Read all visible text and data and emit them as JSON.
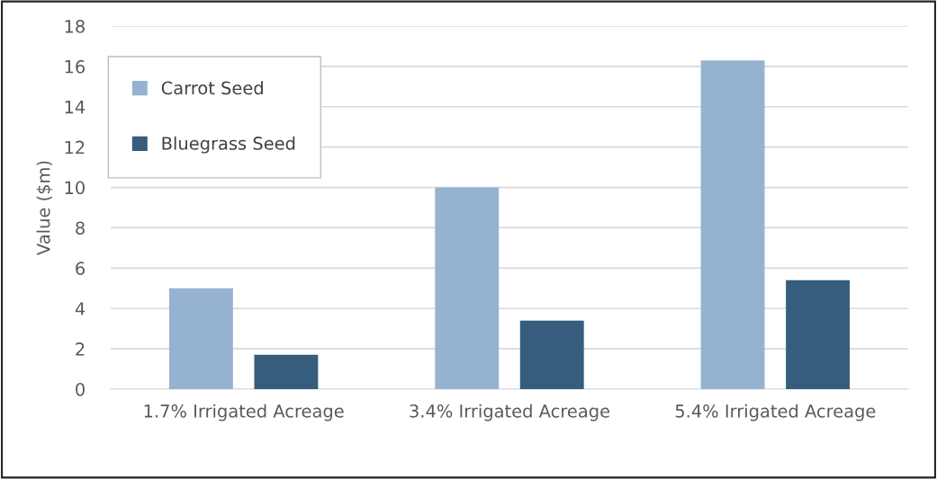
{
  "chart_data": {
    "type": "bar",
    "ylabel": "Value ($m)",
    "categories": [
      "1.7% Irrigated Acreage",
      "3.4% Irrigated Acreage",
      "5.4% Irrigated Acreage"
    ],
    "series": [
      {
        "name": "Carrot Seed",
        "color": "#95b3d1",
        "values": [
          5.0,
          10.0,
          16.3
        ]
      },
      {
        "name": "Bluegrass Seed",
        "color": "#365d7e",
        "values": [
          1.7,
          3.4,
          5.4
        ]
      }
    ],
    "ylim": [
      0,
      18
    ],
    "yticks": [
      0,
      2,
      4,
      6,
      8,
      10,
      12,
      14,
      16,
      18
    ],
    "grid": "y",
    "legend": "top left"
  }
}
